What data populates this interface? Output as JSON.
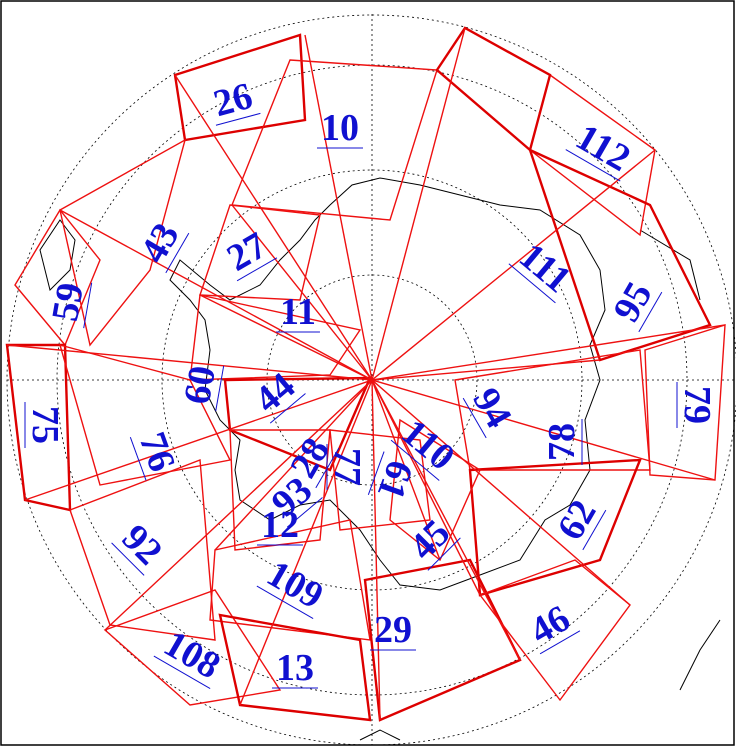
{
  "labels": [
    "26",
    "10",
    "112",
    "43",
    "27",
    "111",
    "95",
    "59",
    "11",
    "60",
    "44",
    "94",
    "79",
    "75",
    "110",
    "78",
    "76",
    "28",
    "77",
    "61",
    "93",
    "12",
    "62",
    "45",
    "92",
    "109",
    "29",
    "46",
    "108",
    "13"
  ]
}
